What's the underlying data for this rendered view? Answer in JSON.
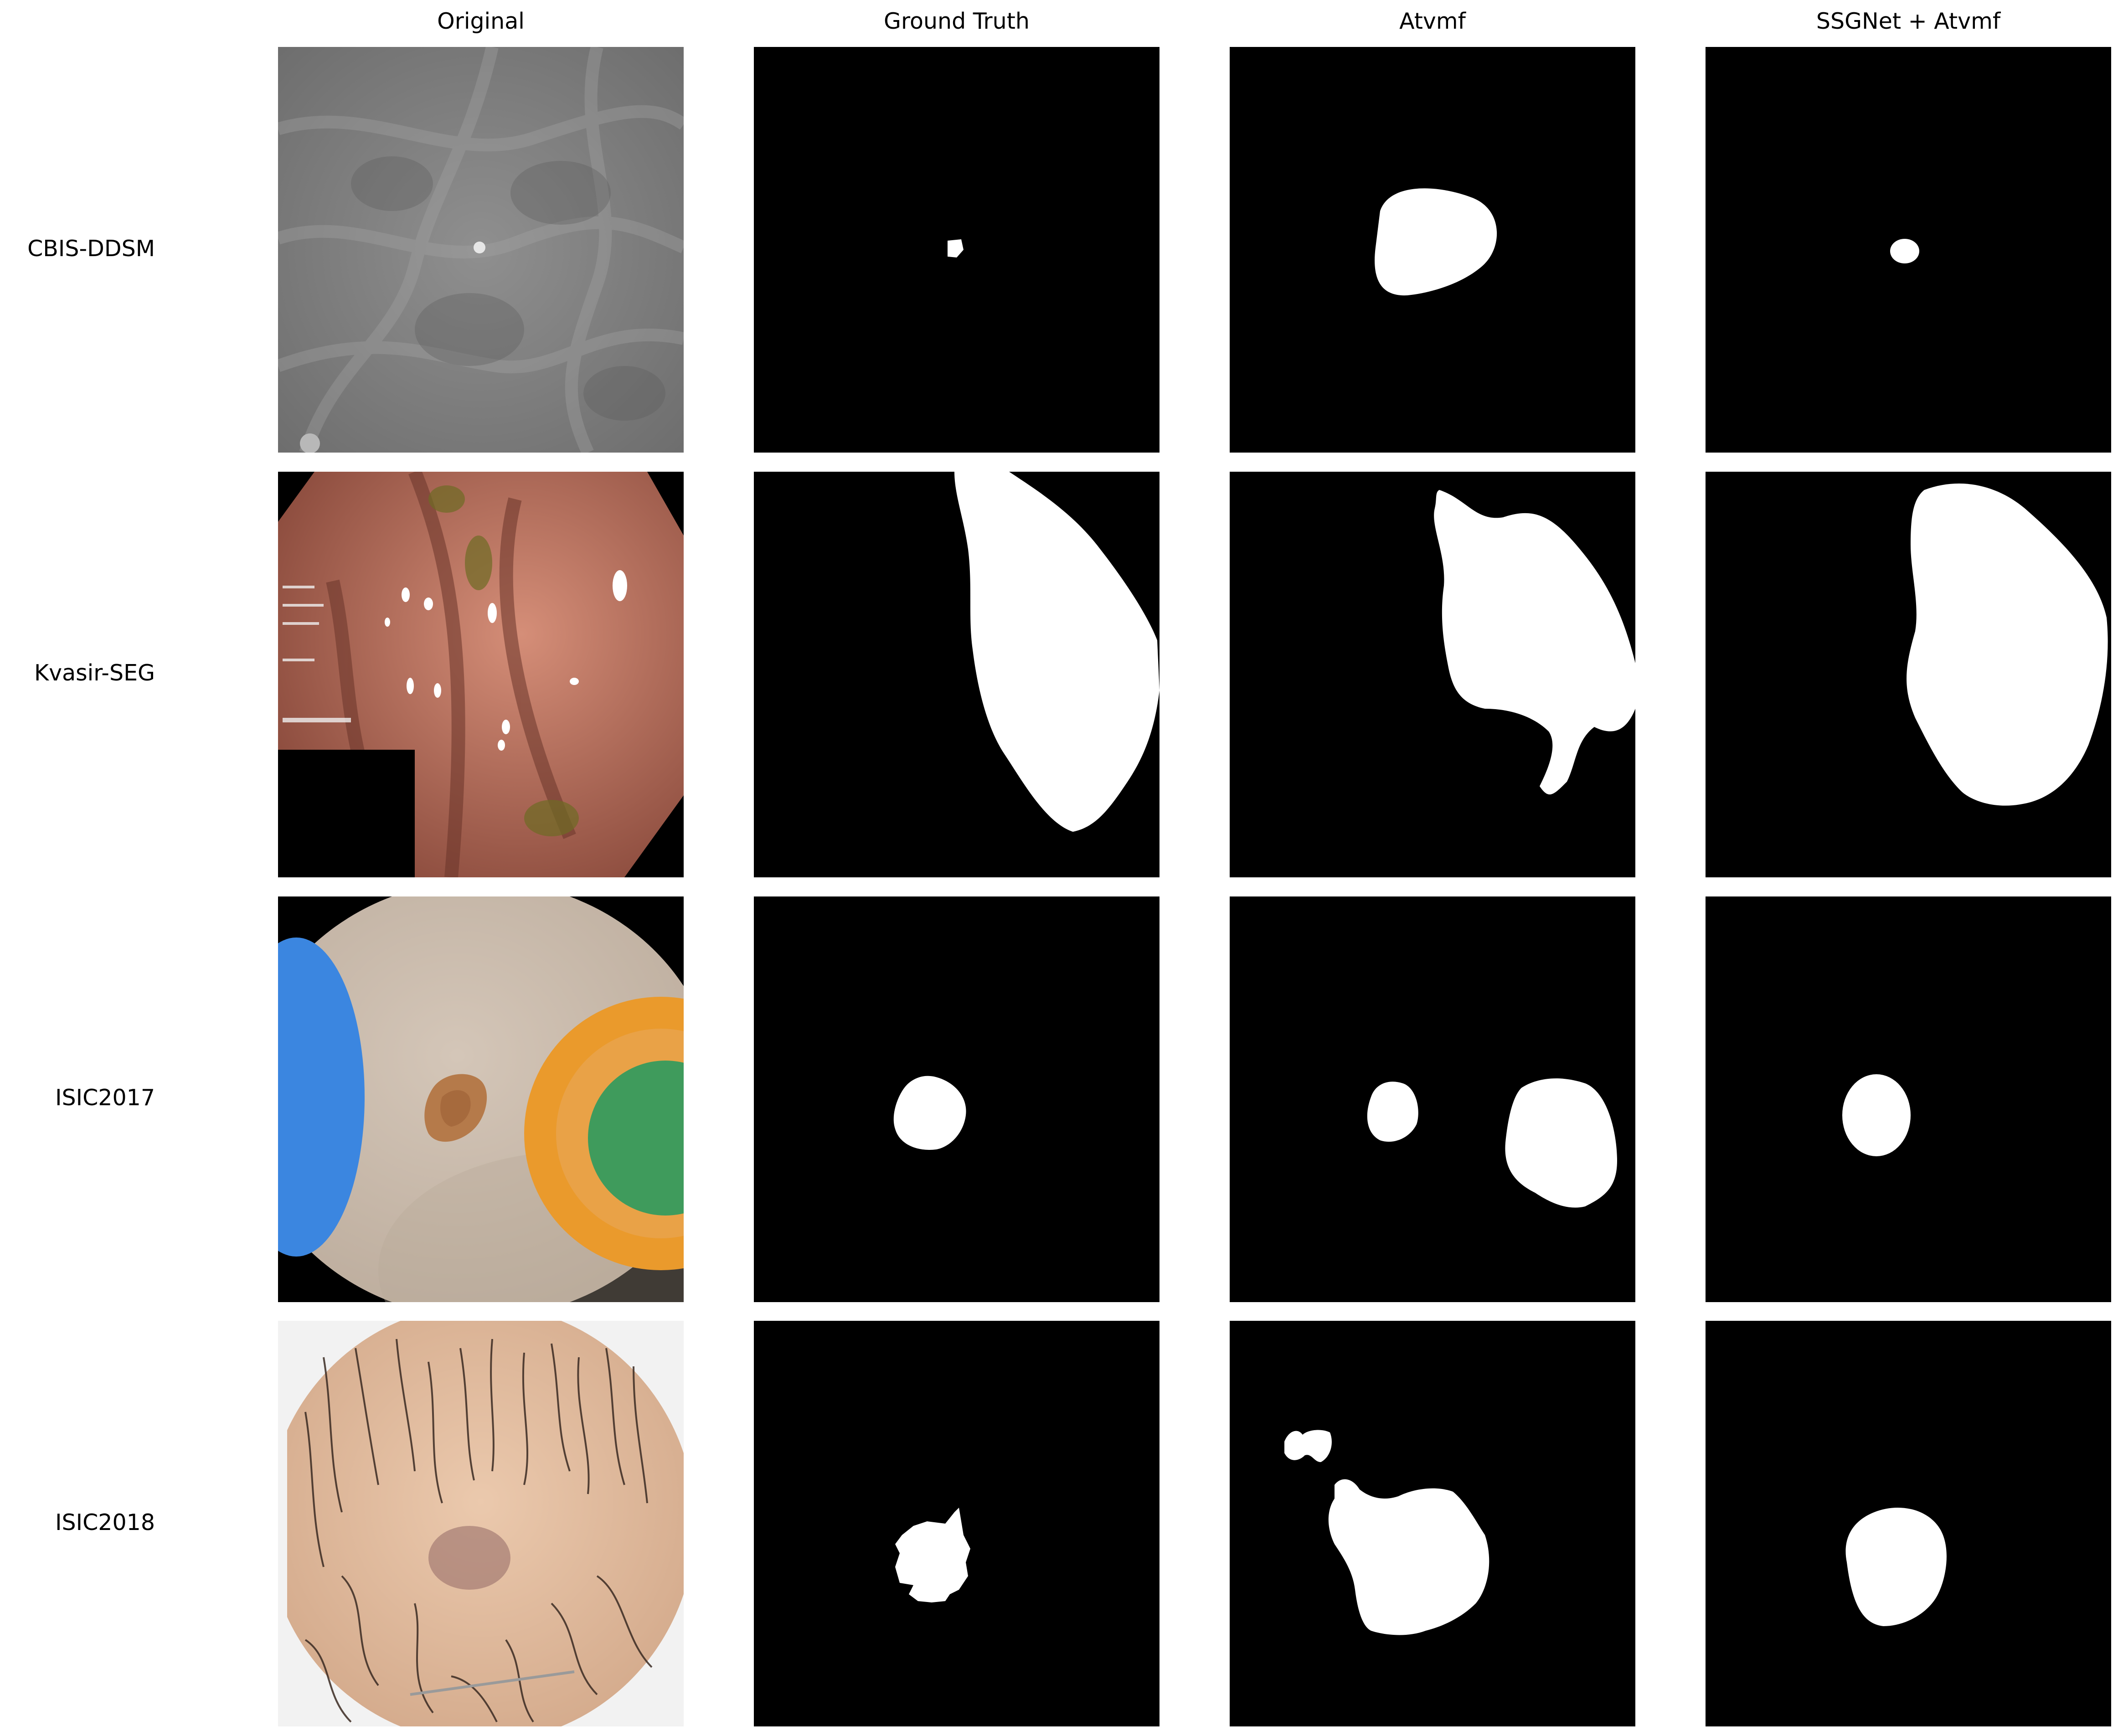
{
  "columns": [
    "Original",
    "Ground Truth",
    "Atvmf",
    "SSGNet + Atvmf"
  ],
  "rows": [
    {
      "dataset": "CBIS-DDSM"
    },
    {
      "dataset": "Kvasir-SEG"
    },
    {
      "dataset": "ISIC2017"
    },
    {
      "dataset": "ISIC2018"
    }
  ],
  "colors": {
    "mask_foreground": "#ffffff",
    "mask_background": "#000000",
    "mammogram_gray": "#8a8a8a",
    "endoscopy_pink": "#b9705e",
    "skin_beige": "#cbb9a8",
    "sticker_blue": "#3b86e0",
    "sticker_orange": "#ea9a2c",
    "sticker_green": "#3f9b5c",
    "lesion_brown": "#b57a4a",
    "isic2018_skin": "#e2b89c"
  }
}
